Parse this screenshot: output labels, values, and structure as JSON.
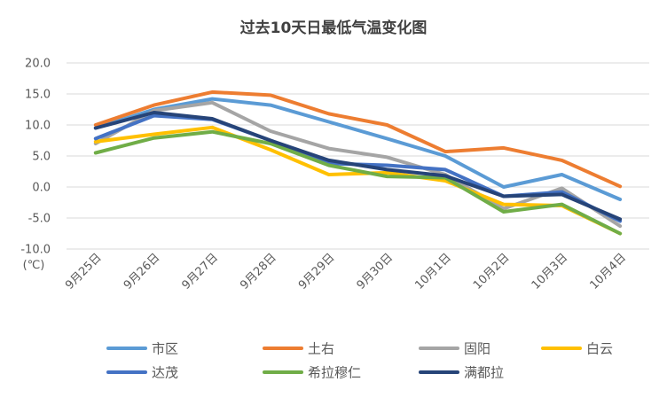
{
  "chart_data": {
    "type": "line",
    "title": "过去10天日最低气温变化图",
    "unit_label": "(℃)",
    "categories": [
      "9月25日",
      "9月26日",
      "9月27日",
      "9月28日",
      "9月29日",
      "9月30日",
      "10月1日",
      "10月2日",
      "10月3日",
      "10月4日"
    ],
    "y_ticks": [
      "20.0",
      "15.0",
      "10.0",
      "5.0",
      "0.0",
      "-5.0",
      "-10.0"
    ],
    "ylim": [
      -10,
      20
    ],
    "grid": true,
    "legend_position": "bottom",
    "series": [
      {
        "name": "市区",
        "color": "#5B9BD5",
        "values": [
          9.5,
          12.5,
          14.2,
          13.2,
          10.5,
          7.8,
          5.0,
          0.0,
          2.0,
          -2.0
        ]
      },
      {
        "name": "土右",
        "color": "#ED7D31",
        "values": [
          10.0,
          13.2,
          15.3,
          14.8,
          11.8,
          10.0,
          5.7,
          6.3,
          4.3,
          0.1
        ]
      },
      {
        "name": "固阳",
        "color": "#A5A5A5",
        "values": [
          7.0,
          12.3,
          13.6,
          9.0,
          6.2,
          4.8,
          2.0,
          -3.5,
          -0.2,
          -6.3
        ]
      },
      {
        "name": "白云",
        "color": "#FFC000",
        "values": [
          7.3,
          8.5,
          9.6,
          6.0,
          2.0,
          2.3,
          1.0,
          -2.8,
          -3.0,
          -7.5
        ]
      },
      {
        "name": "达茂",
        "color": "#4472C4",
        "values": [
          7.8,
          11.5,
          10.9,
          7.5,
          3.8,
          3.5,
          2.8,
          -1.5,
          -0.8,
          -5.5
        ]
      },
      {
        "name": "希拉穆仁",
        "color": "#70AD47",
        "values": [
          5.5,
          7.9,
          8.9,
          7.0,
          3.5,
          1.7,
          1.5,
          -4.0,
          -2.8,
          -7.5
        ]
      },
      {
        "name": "满都拉",
        "color": "#264478",
        "values": [
          9.5,
          12.0,
          11.0,
          7.5,
          4.3,
          2.8,
          1.8,
          -1.5,
          -1.2,
          -5.2
        ]
      }
    ]
  }
}
